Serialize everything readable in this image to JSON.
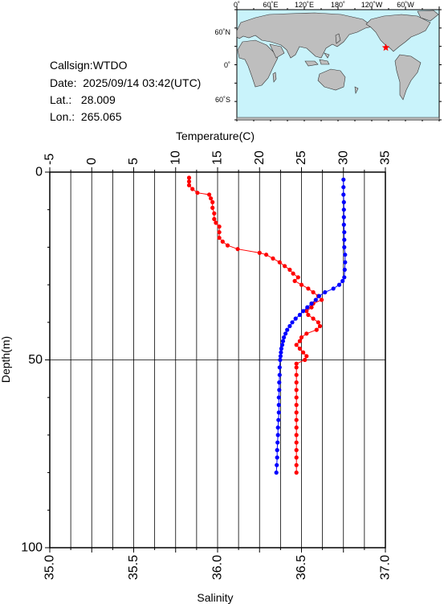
{
  "station": {
    "callsign_label": "Callsign:",
    "callsign": "WTDO",
    "date_label": "Date:",
    "date": "2025/09/14 03:42(UTC)",
    "lat_label": "Lat.:",
    "lat": "28.009",
    "lon_label": "Lon.:",
    "lon": "265.065"
  },
  "map": {
    "top_labels": [
      "0˚",
      "60˚E",
      "120˚E",
      "180˚",
      "120˚W",
      "60˚W"
    ],
    "left_labels": [
      "60˚N",
      "0˚",
      "60˚S"
    ],
    "ocean_color": "#c9f3fb",
    "land_color": "#bebebe",
    "marker": "red-star",
    "marker_color": "#ff0000",
    "marker_lat": 28.009,
    "marker_lon": 265.065
  },
  "chart_data": {
    "type": "line",
    "title": "",
    "ylabel": "Depth(m)",
    "ylim": [
      0,
      100
    ],
    "yticks": [
      "0",
      "50",
      "100"
    ],
    "y_inverted": true,
    "x_top_label": "Temperature(C)",
    "x_top_ticks": [
      "-5",
      "0",
      "5",
      "10",
      "15",
      "20",
      "25",
      "30",
      "35"
    ],
    "x_top_lim": [
      -5,
      35
    ],
    "x_bottom_label": "Salinity",
    "x_bottom_ticks": [
      "35.0",
      "35.5",
      "36.0",
      "36.5",
      "37.0"
    ],
    "x_bottom_lim": [
      35.0,
      37.0
    ],
    "grid": true,
    "series": [
      {
        "color": "#ff0000",
        "axis": "salinity",
        "points": [
          [
            35.83,
            1.5
          ],
          [
            35.83,
            2.5
          ],
          [
            35.83,
            3.5
          ],
          [
            35.85,
            4.5
          ],
          [
            35.88,
            5.5
          ],
          [
            35.95,
            6.0
          ],
          [
            35.96,
            7.0
          ],
          [
            35.97,
            8.0
          ],
          [
            35.97,
            9.5
          ],
          [
            35.98,
            11.0
          ],
          [
            35.98,
            12.5
          ],
          [
            35.99,
            13.5
          ],
          [
            36.01,
            14.5
          ],
          [
            36.01,
            16.0
          ],
          [
            36.01,
            17.5
          ],
          [
            36.03,
            18.5
          ],
          [
            36.06,
            19.5
          ],
          [
            36.12,
            20.5
          ],
          [
            36.25,
            21.5
          ],
          [
            36.29,
            22.0
          ],
          [
            36.33,
            23.0
          ],
          [
            36.37,
            24.0
          ],
          [
            36.4,
            25.0
          ],
          [
            36.43,
            26.0
          ],
          [
            36.45,
            27.0
          ],
          [
            36.48,
            28.0
          ],
          [
            36.46,
            29.0
          ],
          [
            36.5,
            30.0
          ],
          [
            36.54,
            31.0
          ],
          [
            36.57,
            32.0
          ],
          [
            36.6,
            33.0
          ],
          [
            36.62,
            34.0
          ],
          [
            36.57,
            35.0
          ],
          [
            36.56,
            36.0
          ],
          [
            36.53,
            37.0
          ],
          [
            36.54,
            38.0
          ],
          [
            36.57,
            39.0
          ],
          [
            36.6,
            40.0
          ],
          [
            36.61,
            41.0
          ],
          [
            36.59,
            42.0
          ],
          [
            36.53,
            43.0
          ],
          [
            36.5,
            44.0
          ],
          [
            36.49,
            45.0
          ],
          [
            36.47,
            46.0
          ],
          [
            36.49,
            47.0
          ],
          [
            36.51,
            48.0
          ],
          [
            36.53,
            49.0
          ],
          [
            36.52,
            50.0
          ],
          [
            36.47,
            51.0
          ],
          [
            36.47,
            52.0
          ],
          [
            36.47,
            54.0
          ],
          [
            36.47,
            56.0
          ],
          [
            36.47,
            58.0
          ],
          [
            36.47,
            60.0
          ],
          [
            36.47,
            62.0
          ],
          [
            36.47,
            64.0
          ],
          [
            36.47,
            66.0
          ],
          [
            36.47,
            68.0
          ],
          [
            36.47,
            70.0
          ],
          [
            36.47,
            72.0
          ],
          [
            36.47,
            74.0
          ],
          [
            36.47,
            76.0
          ],
          [
            36.47,
            78.0
          ],
          [
            36.47,
            80.0
          ]
        ]
      },
      {
        "color": "#0000ff",
        "axis": "temperature",
        "points": [
          [
            30.0,
            2.0
          ],
          [
            30.0,
            4.0
          ],
          [
            30.0,
            6.0
          ],
          [
            30.05,
            8.0
          ],
          [
            30.05,
            10.0
          ],
          [
            30.05,
            12.0
          ],
          [
            30.05,
            14.0
          ],
          [
            30.1,
            16.0
          ],
          [
            30.1,
            18.0
          ],
          [
            30.1,
            20.0
          ],
          [
            30.2,
            22.0
          ],
          [
            30.2,
            24.0
          ],
          [
            30.15,
            26.0
          ],
          [
            30.1,
            28.0
          ],
          [
            29.9,
            29.0
          ],
          [
            29.5,
            30.0
          ],
          [
            28.8,
            31.0
          ],
          [
            27.8,
            32.0
          ],
          [
            27.1,
            33.0
          ],
          [
            26.7,
            34.0
          ],
          [
            26.2,
            35.0
          ],
          [
            25.7,
            36.0
          ],
          [
            25.2,
            37.0
          ],
          [
            24.8,
            38.0
          ],
          [
            24.3,
            39.0
          ],
          [
            23.9,
            40.0
          ],
          [
            23.6,
            41.0
          ],
          [
            23.3,
            42.0
          ],
          [
            23.1,
            43.0
          ],
          [
            22.9,
            44.0
          ],
          [
            22.8,
            45.0
          ],
          [
            22.7,
            46.0
          ],
          [
            22.6,
            47.0
          ],
          [
            22.55,
            48.0
          ],
          [
            22.5,
            49.0
          ],
          [
            22.45,
            50.0
          ],
          [
            22.4,
            52.0
          ],
          [
            22.4,
            54.0
          ],
          [
            22.35,
            56.0
          ],
          [
            22.35,
            58.0
          ],
          [
            22.3,
            60.0
          ],
          [
            22.3,
            62.0
          ],
          [
            22.3,
            64.0
          ],
          [
            22.25,
            66.0
          ],
          [
            22.2,
            68.0
          ],
          [
            22.2,
            70.0
          ],
          [
            22.15,
            72.0
          ],
          [
            22.1,
            74.0
          ],
          [
            22.1,
            76.0
          ],
          [
            22.05,
            78.0
          ],
          [
            22.0,
            80.0
          ]
        ]
      }
    ]
  }
}
